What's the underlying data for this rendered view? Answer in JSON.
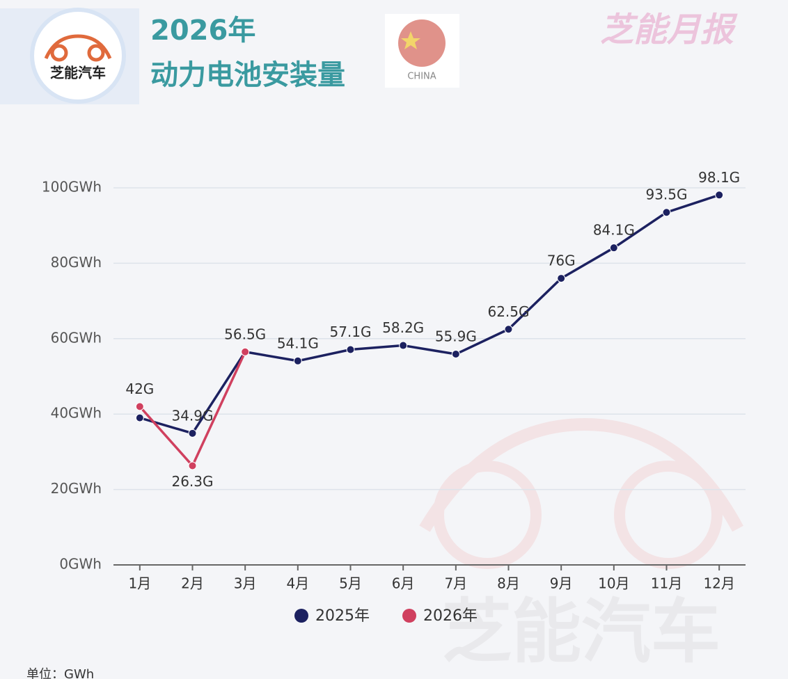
{
  "header": {
    "logo_text": "芝能汽车",
    "title_line1": "2026年",
    "title_line2": "动力电池安装量",
    "flag_label": "CHINA",
    "brand": "芝能月报",
    "watermark": "芝能汽车"
  },
  "chart_data": {
    "type": "line",
    "categories": [
      "1月",
      "2月",
      "3月",
      "4月",
      "5月",
      "6月",
      "7月",
      "8月",
      "9月",
      "10月",
      "11月",
      "12月"
    ],
    "series": [
      {
        "name": "2025年",
        "color": "#1c2160",
        "values": [
          39,
          34.9,
          56.5,
          54.1,
          57.1,
          58.2,
          55.9,
          62.5,
          76,
          84.1,
          93.5,
          98.1
        ],
        "value_labels": [
          null,
          "34.9G",
          "56.5G",
          "54.1G",
          "57.1G",
          "58.2G",
          "55.9G",
          "62.5G",
          "76G",
          "84.1G",
          "93.5G",
          "98.1G"
        ]
      },
      {
        "name": "2026年",
        "color": "#d0405f",
        "values": [
          42,
          26.3,
          56.5,
          null,
          null,
          null,
          null,
          null,
          null,
          null,
          null,
          null
        ],
        "value_labels": [
          "42G",
          "26.3G",
          null,
          null,
          null,
          null,
          null,
          null,
          null,
          null,
          null,
          null
        ]
      }
    ],
    "ylim": [
      0,
      100
    ],
    "yticks": [
      {
        "value": 0,
        "label": "0GWh"
      },
      {
        "value": 20,
        "label": "20GWh"
      },
      {
        "value": 40,
        "label": "40GWh"
      },
      {
        "value": 60,
        "label": "60GWh"
      },
      {
        "value": 80,
        "label": "80GWh"
      },
      {
        "value": 100,
        "label": "100GWh"
      }
    ],
    "grid": true,
    "legend": "bottom",
    "unit_note": "单位：GWh"
  }
}
